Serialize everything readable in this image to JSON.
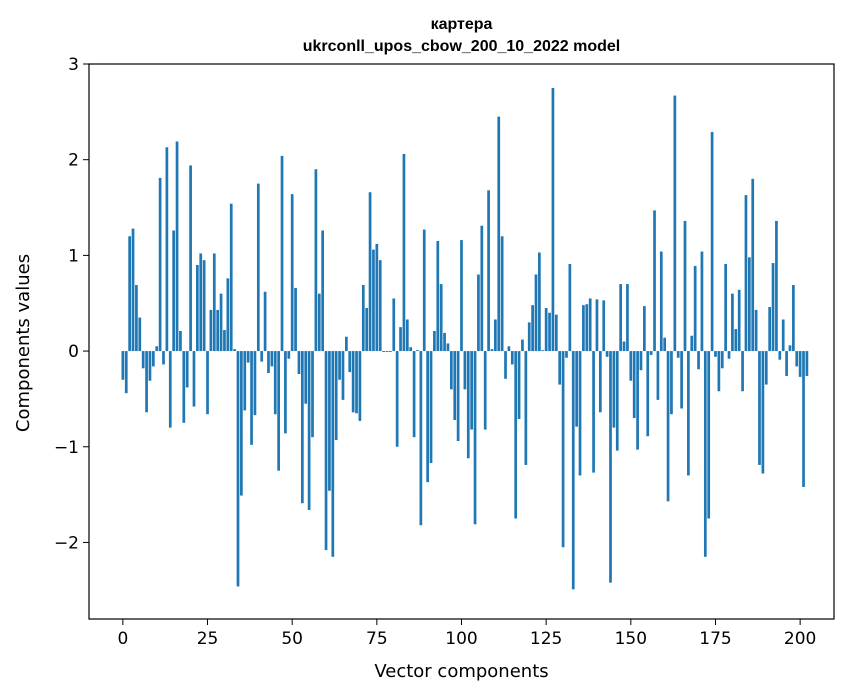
{
  "chart_data": {
    "type": "bar",
    "title_line1": "картера",
    "title_line2": "ukrconll_upos_cbow_200_10_2022 model",
    "xlabel": "Vector components",
    "ylabel": "Components values",
    "xlim": [
      -10,
      210
    ],
    "ylim": [
      -2.8,
      3.0
    ],
    "xticks": [
      0,
      25,
      50,
      75,
      100,
      125,
      150,
      175,
      200
    ],
    "yticks": [
      -2,
      -1,
      0,
      1,
      2,
      3
    ],
    "ytick_labels": [
      "−2",
      "−1",
      "0",
      "1",
      "2",
      "3"
    ],
    "bar_color": "#1f77b4",
    "grid": false,
    "values": [
      -0.3,
      -0.44,
      1.2,
      1.28,
      0.69,
      0.35,
      -0.18,
      -0.64,
      -0.31,
      -0.16,
      0.05,
      1.81,
      -0.14,
      2.13,
      -0.8,
      1.26,
      2.19,
      0.21,
      -0.75,
      -0.38,
      1.94,
      -0.58,
      0.9,
      1.02,
      0.95,
      -0.66,
      0.43,
      1.02,
      0.43,
      0.6,
      0.22,
      0.76,
      1.54,
      0.02,
      -2.46,
      -1.51,
      -0.62,
      -0.12,
      -0.98,
      -0.67,
      1.75,
      -0.11,
      0.62,
      -0.23,
      -0.16,
      -0.66,
      -1.25,
      2.04,
      -0.86,
      -0.08,
      1.64,
      0.66,
      -0.24,
      -1.59,
      -0.55,
      -1.66,
      -0.9,
      1.9,
      0.6,
      1.26,
      -2.08,
      -1.46,
      -2.15,
      -0.93,
      -0.3,
      -0.51,
      0.15,
      -0.22,
      -0.64,
      -0.65,
      -0.73,
      0.69,
      0.45,
      1.66,
      1.06,
      1.12,
      0.95,
      -0.01,
      -0.01,
      -0.01,
      0.55,
      -1.0,
      0.25,
      2.06,
      0.33,
      0.04,
      -0.9,
      0.01,
      -1.82,
      1.27,
      -1.37,
      -1.17,
      0.21,
      1.15,
      0.7,
      0.19,
      0.08,
      -0.4,
      -0.72,
      -0.94,
      1.16,
      -0.4,
      -1.12,
      -0.82,
      -1.81,
      0.8,
      1.31,
      -0.82,
      1.68,
      0.02,
      0.33,
      2.45,
      1.2,
      -0.29,
      0.05,
      -0.14,
      -1.75,
      -0.71,
      0.12,
      -1.19,
      0.3,
      0.48,
      0.8,
      1.03,
      0.01,
      0.45,
      0.4,
      2.75,
      0.38,
      -0.35,
      -2.05,
      -0.07,
      0.91,
      -2.49,
      -0.79,
      -1.3,
      0.48,
      0.49,
      0.55,
      -1.27,
      0.54,
      -0.64,
      0.53,
      -0.06,
      -2.42,
      -0.8,
      -1.04,
      0.7,
      0.1,
      0.7,
      -0.31,
      -0.7,
      -1.03,
      -0.2,
      0.47,
      -0.89,
      -0.04,
      1.47,
      -0.51,
      1.04,
      0.14,
      -1.57,
      -0.66,
      2.67,
      -0.07,
      -0.6,
      1.36,
      -1.3,
      0.16,
      0.89,
      -0.19,
      1.04,
      -2.15,
      -1.75,
      2.29,
      -0.06,
      -0.42,
      -0.18,
      0.91,
      -0.08,
      0.6,
      0.23,
      0.64,
      -0.42,
      1.63,
      0.98,
      1.8,
      0.43,
      -1.19,
      -1.28,
      -0.35,
      0.46,
      0.92,
      1.36,
      -0.09,
      0.33,
      -0.26,
      0.06,
      0.69,
      -0.16,
      -0.27,
      -1.42,
      -0.26
    ]
  }
}
